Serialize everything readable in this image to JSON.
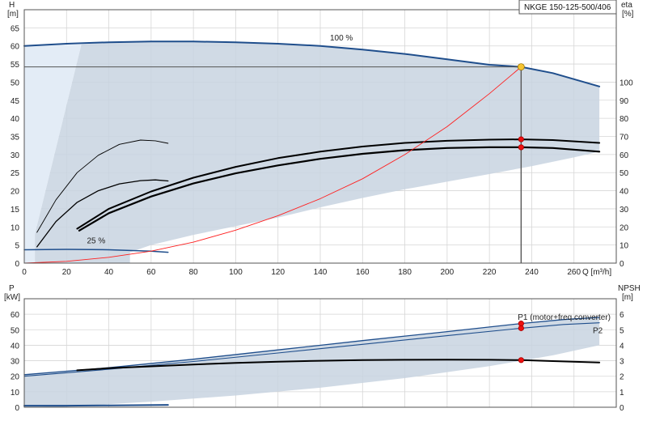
{
  "chart_data": [
    {
      "type": "line",
      "title": "NKGE 150-125-500/406",
      "xlabel": "Q [m³/h]",
      "ylabel_left": [
        "H",
        "[m]"
      ],
      "ylabel_right": [
        "eta",
        "[%]"
      ],
      "xlim": [
        0,
        280
      ],
      "ylim": [
        0,
        70
      ],
      "ylim_right": [
        0,
        140
      ],
      "x_ticks": [
        "0",
        "20",
        "40",
        "60",
        "80",
        "100",
        "120",
        "140",
        "160",
        "180",
        "200",
        "220",
        "240",
        "260"
      ],
      "y_ticks": [
        "0",
        "5",
        "10",
        "15",
        "20",
        "25",
        "30",
        "35",
        "40",
        "45",
        "50",
        "55",
        "60",
        "65"
      ],
      "y2_ticks": [
        "0",
        "10",
        "20",
        "30",
        "40",
        "50",
        "60",
        "70",
        "80",
        "90",
        "100"
      ],
      "grid": true,
      "annotations": [
        "100 %",
        "25 %"
      ],
      "operating_point": {
        "Q": 235,
        "H": 54.2,
        "eta_curve_H": 34.2,
        "eta_total_H": 32.0
      },
      "series": [
        {
          "key": "h100",
          "color": "#1f4e8c",
          "width": 2,
          "x": [
            0,
            20,
            40,
            60,
            80,
            100,
            120,
            140,
            160,
            180,
            200,
            220,
            235,
            250,
            272
          ],
          "y": [
            60,
            60.6,
            61.0,
            61.2,
            61.2,
            61.0,
            60.6,
            60.0,
            59.0,
            57.8,
            56.3,
            54.8,
            54.2,
            52.5,
            48.8
          ]
        },
        {
          "key": "h25",
          "color": "#1f4e8c",
          "width": 1.5,
          "x": [
            0,
            20,
            40,
            60,
            68
          ],
          "y": [
            3.7,
            3.8,
            3.7,
            3.3,
            3.0
          ]
        },
        {
          "key": "eta-max",
          "color": "#000000",
          "width": 2,
          "x": [
            25,
            40,
            60,
            80,
            100,
            120,
            140,
            160,
            180,
            200,
            220,
            235,
            250,
            272
          ],
          "y": [
            9.5,
            15,
            19.8,
            23.6,
            26.6,
            29.0,
            30.8,
            32.2,
            33.2,
            33.8,
            34.1,
            34.2,
            34.0,
            33.2
          ]
        },
        {
          "key": "eta-total",
          "color": "#000000",
          "width": 2.2,
          "x": [
            26,
            40,
            60,
            80,
            100,
            120,
            140,
            160,
            180,
            200,
            220,
            235,
            250,
            272
          ],
          "y": [
            9.0,
            13.8,
            18.4,
            22.0,
            24.8,
            27.0,
            28.8,
            30.2,
            31.2,
            31.8,
            32.0,
            32.0,
            31.8,
            30.8
          ]
        },
        {
          "key": "eta-thin1",
          "color": "#000000",
          "width": 0.9,
          "x": [
            6,
            15,
            25,
            35,
            45,
            55,
            62,
            68
          ],
          "y": [
            8.5,
            17.5,
            25.0,
            29.8,
            32.8,
            34.0,
            33.8,
            33.1
          ]
        },
        {
          "key": "eta-thin2",
          "color": "#000000",
          "width": 1.3,
          "x": [
            6,
            15,
            25,
            35,
            45,
            55,
            62,
            68
          ],
          "y": [
            4.5,
            11.5,
            16.8,
            20.0,
            21.9,
            22.8,
            23.0,
            22.7
          ]
        },
        {
          "key": "system-curve",
          "color": "#ff2020",
          "width": 0.9,
          "x": [
            0,
            20,
            40,
            60,
            80,
            100,
            120,
            140,
            160,
            180,
            200,
            220,
            235
          ],
          "y": [
            0,
            0.5,
            1.6,
            3.3,
            5.8,
            9.1,
            13.1,
            17.8,
            23.3,
            30.0,
            37.7,
            46.8,
            54.2
          ]
        }
      ]
    },
    {
      "type": "line",
      "xlabel": "",
      "ylabel_left": [
        "P",
        "[kW]"
      ],
      "ylabel_right": [
        "NPSH",
        "[m]"
      ],
      "xlim": [
        0,
        280
      ],
      "ylim": [
        0,
        70
      ],
      "ylim_right": [
        0,
        7
      ],
      "y_ticks": [
        "0",
        "10",
        "20",
        "30",
        "40",
        "50",
        "60"
      ],
      "y2_ticks": [
        "0",
        "1",
        "2",
        "3",
        "4",
        "5",
        "6"
      ],
      "grid": true,
      "series": [
        {
          "key": "p1",
          "name": "P1 (motor+freq.converter)",
          "color": "#1f4e8c",
          "width": 1.3,
          "x": [
            0,
            40,
            80,
            120,
            160,
            200,
            235,
            255,
            272
          ],
          "y": [
            21.0,
            25.5,
            31.0,
            37.0,
            43.0,
            48.8,
            54.0,
            56.6,
            58.0
          ]
        },
        {
          "key": "p2",
          "name": "P2",
          "color": "#1f4e8c",
          "width": 1.1,
          "x": [
            0,
            40,
            80,
            120,
            160,
            200,
            235,
            255,
            272
          ],
          "y": [
            20.0,
            24.5,
            29.5,
            35.0,
            40.6,
            46.2,
            51.0,
            53.4,
            54.5
          ]
        },
        {
          "key": "npsh",
          "color": "#000000",
          "width": 2,
          "x": [
            25,
            40,
            60,
            80,
            100,
            120,
            140,
            160,
            180,
            200,
            220,
            235,
            250,
            272
          ],
          "y": [
            23.8,
            25.2,
            26.4,
            27.6,
            28.6,
            29.4,
            30.0,
            30.4,
            30.6,
            30.7,
            30.6,
            30.4,
            29.8,
            28.9
          ]
        },
        {
          "key": "p-low",
          "color": "#1f4e8c",
          "width": 2,
          "x": [
            0,
            20,
            40,
            68
          ],
          "y": [
            1.0,
            1.0,
            1.2,
            1.5
          ]
        }
      ],
      "marker_values": [
        54.0,
        51.0,
        30.4
      ]
    }
  ]
}
